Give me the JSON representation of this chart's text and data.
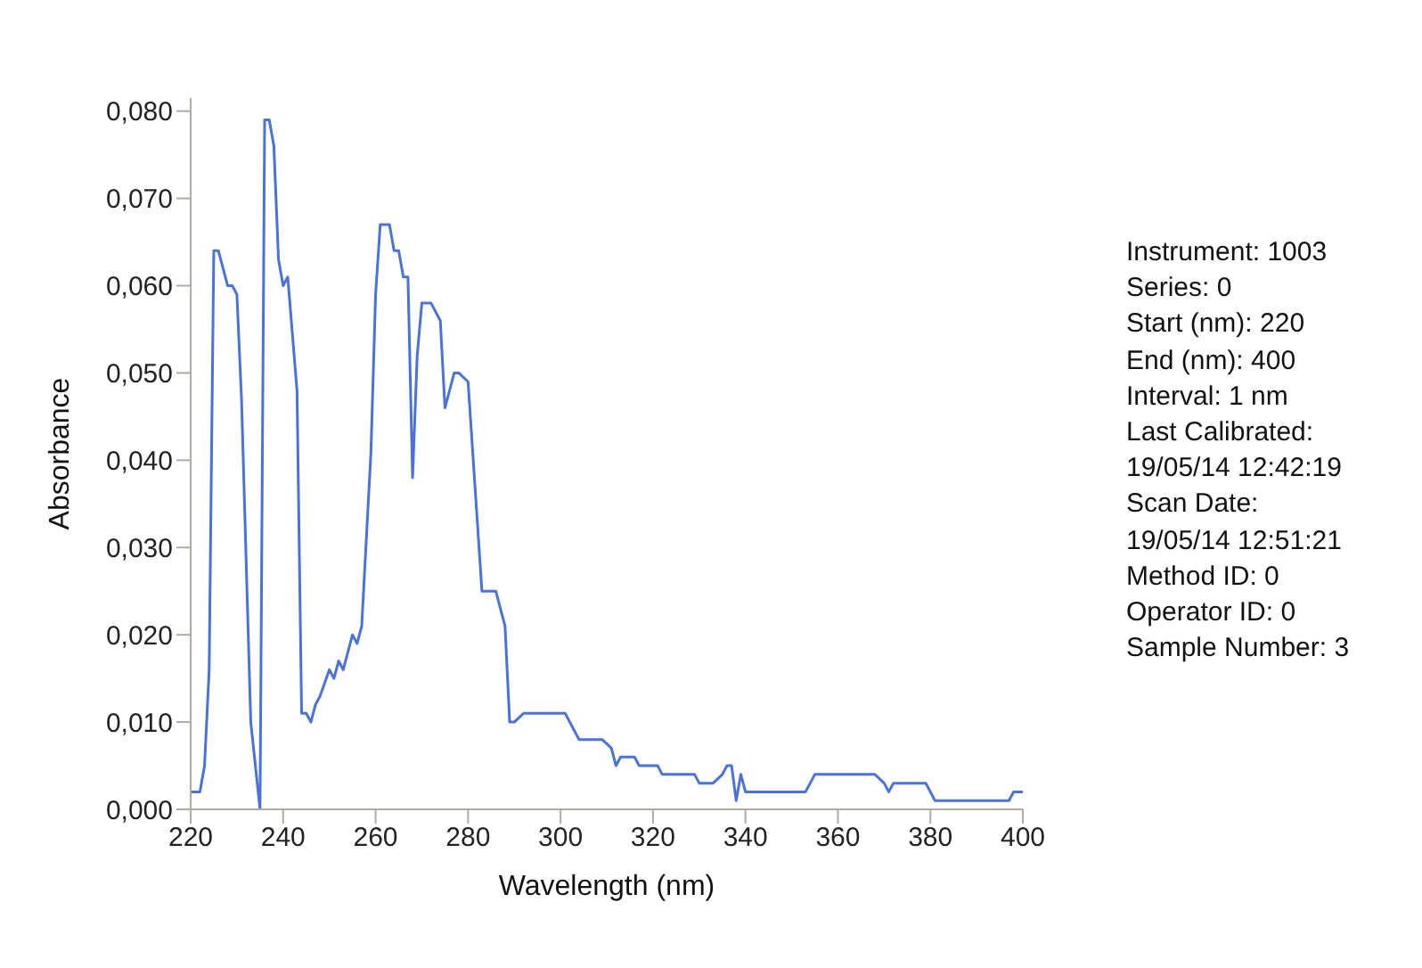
{
  "chart_data": {
    "type": "line",
    "xlabel": "Wavelength (nm)",
    "ylabel": "Absorbance",
    "x": [
      220,
      222,
      223,
      224,
      225,
      226,
      228,
      229,
      230,
      231,
      233,
      235,
      236,
      237,
      238,
      239,
      240,
      241,
      243,
      244,
      245,
      246,
      247,
      248,
      250,
      251,
      252,
      253,
      255,
      256,
      257,
      259,
      260,
      261,
      263,
      264,
      265,
      266,
      267,
      268,
      269,
      270,
      272,
      274,
      275,
      277,
      278,
      280,
      283,
      286,
      288,
      289,
      290,
      292,
      301,
      304,
      309,
      311,
      312,
      313,
      316,
      317,
      321,
      322,
      329,
      330,
      333,
      335,
      336,
      337,
      338,
      339,
      340,
      353,
      355,
      368,
      370,
      371,
      372,
      379,
      380,
      381,
      397,
      398,
      400
    ],
    "series": [
      {
        "color": "#4a72d8",
        "values": [
          0.002,
          0.002,
          0.005,
          0.016,
          0.064,
          0.064,
          0.06,
          0.06,
          0.059,
          0.047,
          0.01,
          0,
          0.079,
          0.079,
          0.076,
          0.063,
          0.06,
          0.061,
          0.048,
          0.011,
          0.011,
          0.01,
          0.012,
          0.013,
          0.016,
          0.015,
          0.017,
          0.016,
          0.02,
          0.019,
          0.021,
          0.041,
          0.059,
          0.067,
          0.067,
          0.064,
          0.064,
          0.061,
          0.061,
          0.038,
          0.052,
          0.058,
          0.058,
          0.056,
          0.046,
          0.05,
          0.05,
          0.049,
          0.025,
          0.025,
          0.021,
          0.01,
          0.01,
          0.011,
          0.011,
          0.008,
          0.008,
          0.007,
          0.005,
          0.006,
          0.006,
          0.005,
          0.005,
          0.004,
          0.004,
          0.003,
          0.003,
          0.004,
          0.005,
          0.005,
          0.001,
          0.004,
          0.002,
          0.002,
          0.004,
          0.004,
          0.003,
          0.002,
          0.003,
          0.003,
          0.002,
          0.001,
          0.001,
          0.002,
          0.002
        ]
      }
    ],
    "xlim": [
      220,
      400
    ],
    "xticks": [
      220,
      240,
      260,
      280,
      300,
      320,
      340,
      360,
      380,
      400
    ],
    "ylim": [
      0,
      0.0815
    ],
    "yticks": [
      {
        "value": 0,
        "label": "0,000"
      },
      {
        "value": 0.01,
        "label": "0,010"
      },
      {
        "value": 0.02,
        "label": "0,020"
      },
      {
        "value": 0.03,
        "label": "0,030"
      },
      {
        "value": 0.04,
        "label": "0,040"
      },
      {
        "value": 0.05,
        "label": "0,050"
      },
      {
        "value": 0.06,
        "label": "0,060"
      },
      {
        "value": 0.07,
        "label": "0,070"
      },
      {
        "value": 0.08,
        "label": "0,080"
      }
    ],
    "grid": false,
    "legend": false,
    "marker": "none",
    "line_style": "solid",
    "annotations": [
      "Instrument: 1003",
      "Series: 0",
      "Start (nm): 220",
      "End (nm): 400",
      "Interval: 1 nm",
      "Last Calibrated:",
      "19/05/14 12:42:19",
      "Scan Date:",
      "19/05/14 12:51:21",
      "Method ID: 0",
      "Operator ID: 0",
      "Sample Number: 3"
    ]
  }
}
